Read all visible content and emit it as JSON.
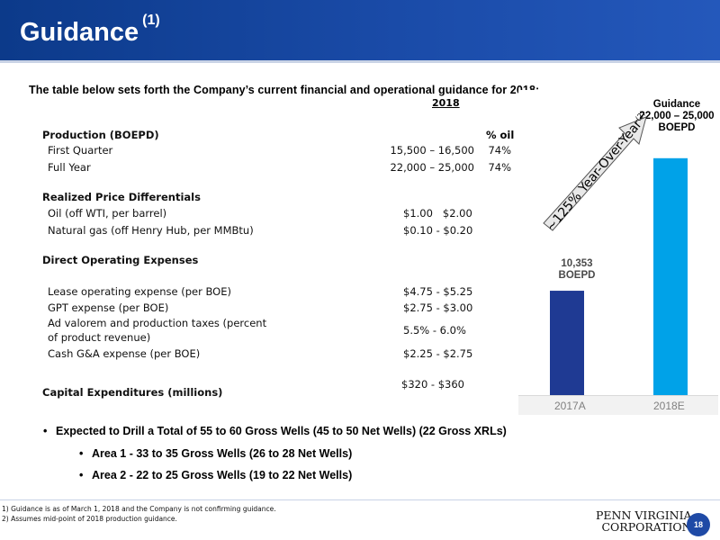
{
  "header": {
    "title": "Guidance",
    "title_sup": "(1)"
  },
  "intro": "The table below sets forth the Company’s current financial and operational guidance for 2018:",
  "table": {
    "col_2018": "2018",
    "pct_oil": "% oil",
    "production": {
      "heading": "Production (BOEPD)",
      "rows": [
        {
          "label": "First Quarter",
          "value": "15,500 – 16,500",
          "pct": "74%"
        },
        {
          "label": "Full Year",
          "value": "22,000 – 25,000",
          "pct": "74%"
        }
      ]
    },
    "differentials": {
      "heading": "Realized Price Differentials",
      "rows": [
        {
          "label": "Oil (off WTI, per barrel)",
          "value": "$1.00   $2.00"
        },
        {
          "label": "Natural gas (off Henry Hub, per MMBtu)",
          "value": "$0.10 - $0.20"
        }
      ]
    },
    "opex": {
      "heading": "Direct Operating Expenses",
      "rows": [
        {
          "label": "Lease operating expense (per BOE)",
          "value": "$4.75 - $5.25"
        },
        {
          "label": "GPT expense (per BOE)",
          "value": "$2.75 - $3.00"
        },
        {
          "label": "Ad valorem and production taxes (percent",
          "label2": "of product revenue)",
          "value": "5.5% - 6.0%"
        },
        {
          "label": "Cash G&A expense (per BOE)",
          "value": "$2.25 - $2.75"
        }
      ]
    },
    "capex": {
      "heading": "Capital Expenditures (millions)",
      "value": "$320 - $360"
    }
  },
  "chart_data": {
    "type": "bar",
    "categories": [
      "2017A",
      "2018E"
    ],
    "values": [
      10353,
      23500
    ],
    "bar_labels": [
      "10,353\nBOEPD",
      "Guidance\n22,000 – 25,000\nBOEPD"
    ],
    "colors": [
      "#1f3a93",
      "#00a2e8"
    ],
    "annotation": "~125% Year-Over-Year",
    "annotation_sup": "(2)",
    "ylim": [
      0,
      25000
    ]
  },
  "bullets": [
    {
      "text": "Expected to Drill a Total of 55 to 60 Gross Wells (45 to 50 Net Wells) (22 Gross XRLs)",
      "level": 1
    },
    {
      "text": "Area 1 - 33 to 35 Gross Wells (26 to 28 Net Wells)",
      "level": 2
    },
    {
      "text": "Area 2 - 22 to 25 Gross Wells (19 to 22 Net Wells)",
      "level": 2
    }
  ],
  "footnotes": [
    "1) Guidance is as of March 1, 2018 and the Company is not confirming guidance.",
    "2)  Assumes mid-point of 2018 production guidance."
  ],
  "logo": {
    "line1": "PENN VIRGINIA",
    "line2": "CORPORATION"
  },
  "page_number": "18"
}
